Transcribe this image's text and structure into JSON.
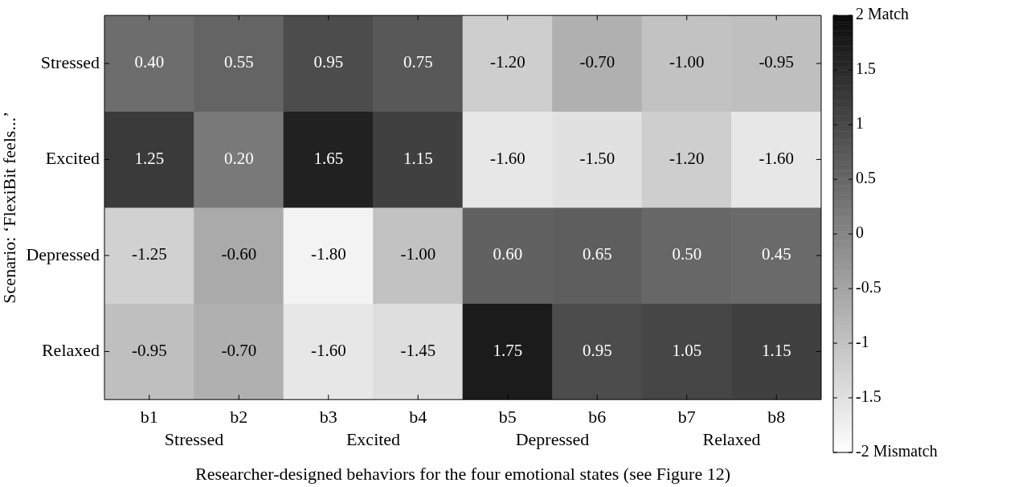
{
  "chart_data": {
    "type": "heatmap",
    "xlabel": "Researcher-designed behaviors for the four emotional states (see Figure 12)",
    "ylabel": "Scenario: ‘FlexiBit feels...’",
    "categories": [
      "b1",
      "b2",
      "b3",
      "b4",
      "b5",
      "b6",
      "b7",
      "b8"
    ],
    "y_categories": [
      "Stressed",
      "Excited",
      "Depressed",
      "Relaxed"
    ],
    "cells": [
      [
        0.4,
        0.55,
        0.95,
        0.75,
        -1.2,
        -0.7,
        -1.0,
        -0.95
      ],
      [
        1.25,
        0.2,
        1.65,
        1.15,
        -1.6,
        -1.5,
        -1.2,
        -1.6
      ],
      [
        -1.25,
        -0.6,
        -1.8,
        -1.0,
        0.6,
        0.65,
        0.5,
        0.45
      ],
      [
        -0.95,
        -0.7,
        -1.6,
        -1.45,
        1.75,
        0.95,
        1.05,
        1.15
      ]
    ],
    "cell_labels": [
      [
        "0.40",
        "0.55",
        "0.95",
        "0.75",
        "-1.20",
        "-0.70",
        "-1.00",
        "-0.95"
      ],
      [
        "1.25",
        "0.20",
        "1.65",
        "1.15",
        "-1.60",
        "-1.50",
        "-1.20",
        "-1.60"
      ],
      [
        "-1.25",
        "-0.60",
        "-1.80",
        "-1.00",
        "0.60",
        "0.65",
        "0.50",
        "0.45"
      ],
      [
        "-0.95",
        "-0.70",
        "-1.60",
        "-1.45",
        "1.75",
        "0.95",
        "1.05",
        "1.15"
      ]
    ],
    "annotations": [
      "Stressed",
      "Excited",
      "Depressed",
      "Relaxed"
    ],
    "clim": [
      -2,
      2
    ],
    "cticks": [
      {
        "value": -2,
        "label": "-2 Mismatch"
      },
      -1.5,
      -1,
      -0.5,
      0,
      0.5,
      1,
      1.5,
      {
        "value": 2,
        "label": "2 Match"
      }
    ]
  }
}
